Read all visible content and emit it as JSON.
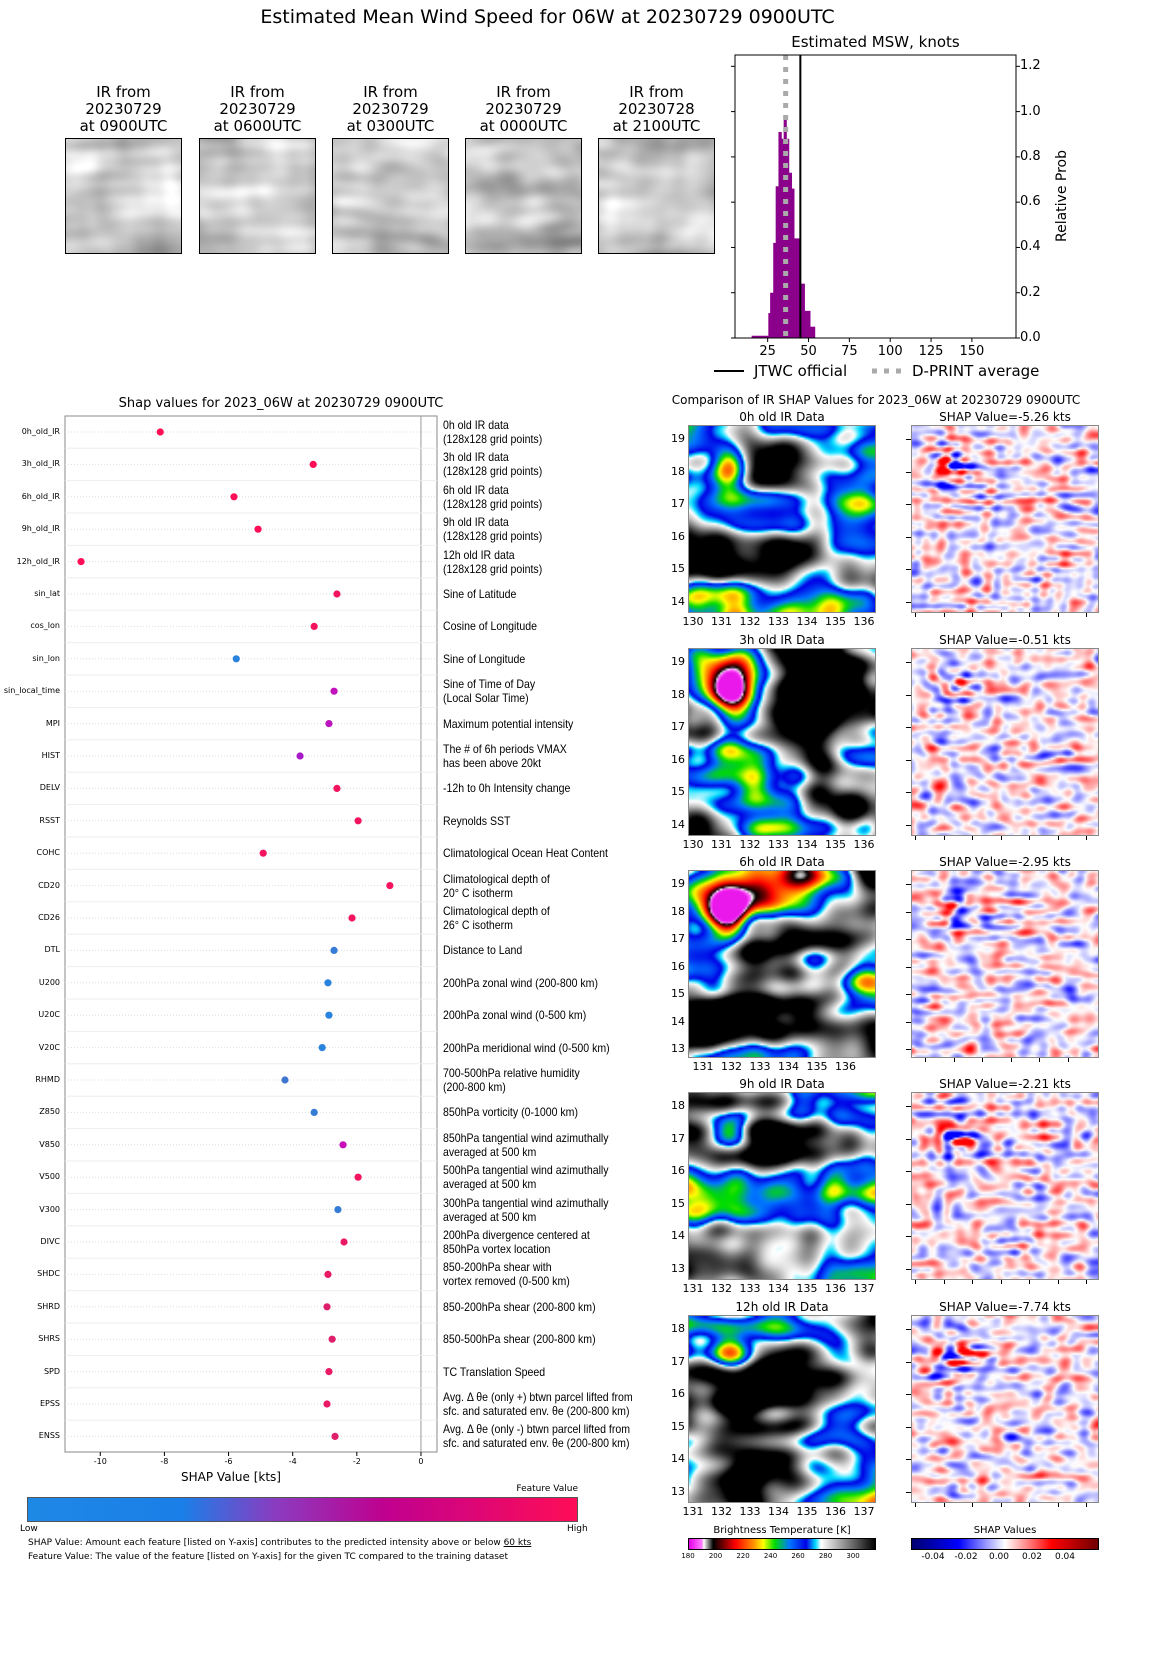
{
  "title": "Estimated Mean Wind Speed for 06W at 20230729 0900UTC",
  "ir_images": [
    {
      "title": "IR from\n20230729\nat 0900UTC"
    },
    {
      "title": "IR from\n20230729\nat 0600UTC"
    },
    {
      "title": "IR from\n20230729\nat 0300UTC"
    },
    {
      "title": "IR from\n20230729\nat 0000UTC"
    },
    {
      "title": "IR from\n20230728\nat 2100UTC"
    }
  ],
  "chart_data": [
    {
      "type": "bar",
      "title": "Estimated MSW, knots",
      "xlabel": "",
      "ylabel": "Relative Prob",
      "xlim": [
        5,
        177
      ],
      "ylim": [
        0,
        1.25
      ],
      "xticks": [
        "25",
        "50",
        "75",
        "100",
        "125",
        "150"
      ],
      "yticks": [
        "0.0",
        "0.2",
        "0.4",
        "0.6",
        "0.8",
        "1.0",
        "1.2"
      ],
      "bin_edges": [
        15.2,
        25.4,
        26.5,
        28.4,
        29.9,
        31.6,
        33.3,
        34.8,
        36.4,
        37.9,
        39.6,
        41.1,
        44.7,
        47.5,
        50.9,
        53.8
      ],
      "values": [
        0.01,
        0.11,
        0.2,
        0.42,
        0.67,
        0.91,
        0.88,
        0.98,
        0.88,
        0.73,
        0.66,
        0.44,
        0.24,
        0.12,
        0.05
      ],
      "bar_color": "#8b008b",
      "jtwc_official": 45,
      "dprint_average": 36,
      "legend": [
        {
          "label": "JTWC official",
          "style": "solid",
          "color": "#000000"
        },
        {
          "label": "D-PRINT average",
          "style": "dotted",
          "color": "#aaaaaa"
        }
      ],
      "legend_placement": "bottom"
    },
    {
      "type": "scatter",
      "title": "Shap values for 2023_06W at 20230729 0900UTC",
      "xlabel": "SHAP Value [kts]",
      "xlim": [
        -11.1,
        0.5
      ],
      "xticks": [
        -10,
        -8,
        -6,
        -4,
        -2,
        0
      ],
      "features": [
        {
          "code": "0h_old_IR",
          "desc": "0h old IR data\n(128x128 grid points)",
          "shap": -8.13,
          "fv": 1.0
        },
        {
          "code": "3h_old_IR",
          "desc": "3h old IR data\n(128x128 grid points)",
          "shap": -3.36,
          "fv": 1.0
        },
        {
          "code": "6h_old_IR",
          "desc": "6h old IR data\n(128x128 grid points)",
          "shap": -5.83,
          "fv": 1.0
        },
        {
          "code": "9h_old_IR",
          "desc": "9h old IR data\n(128x128 grid points)",
          "shap": -5.08,
          "fv": 1.0
        },
        {
          "code": "12h_old_IR",
          "desc": "12h old IR data\n(128x128 grid points)",
          "shap": -10.6,
          "fv": 1.0
        },
        {
          "code": "sin_lat",
          "desc": "Sine of Latitude",
          "shap": -2.62,
          "fv": 0.95
        },
        {
          "code": "cos_lon",
          "desc": "Cosine of Longitude",
          "shap": -3.33,
          "fv": 0.95
        },
        {
          "code": "sin_lon",
          "desc": "Sine of Longitude",
          "shap": -5.76,
          "fv": 0.05
        },
        {
          "code": "sin_local_time",
          "desc": "Sine of Time of Day\n(Local Solar Time)",
          "shap": -2.71,
          "fv": 0.55
        },
        {
          "code": "MPI",
          "desc": "Maximum potential intensity",
          "shap": -2.87,
          "fv": 0.5
        },
        {
          "code": "HIST",
          "desc": "The # of 6h periods VMAX\nhas been above 20kt",
          "shap": -3.77,
          "fv": 0.35
        },
        {
          "code": "DELV",
          "desc": "-12h to 0h Intensity change",
          "shap": -2.62,
          "fv": 0.95
        },
        {
          "code": "RSST",
          "desc": "Reynolds SST",
          "shap": -1.96,
          "fv": 0.95
        },
        {
          "code": "COHC",
          "desc": "Climatological Ocean Heat Content",
          "shap": -4.92,
          "fv": 0.95
        },
        {
          "code": "CD20",
          "desc": "Climatological depth of\n20° C isotherm",
          "shap": -0.97,
          "fv": 0.95
        },
        {
          "code": "CD26",
          "desc": "Climatological depth of\n26° C isotherm",
          "shap": -2.15,
          "fv": 0.95
        },
        {
          "code": "DTL",
          "desc": "Distance to Land",
          "shap": -2.71,
          "fv": 0.1
        },
        {
          "code": "U200",
          "desc": "200hPa zonal wind (200-800 km)",
          "shap": -2.9,
          "fv": 0.05
        },
        {
          "code": "U20C",
          "desc": "200hPa zonal wind (0-500 km)",
          "shap": -2.87,
          "fv": 0.05
        },
        {
          "code": "V20C",
          "desc": "200hPa meridional wind (0-500 km)",
          "shap": -3.08,
          "fv": 0.05
        },
        {
          "code": "RHMD",
          "desc": "700-500hPa relative humidity\n(200-800 km)",
          "shap": -4.24,
          "fv": 0.15
        },
        {
          "code": "Z850",
          "desc": "850hPa vorticity (0-1000 km)",
          "shap": -3.33,
          "fv": 0.1
        },
        {
          "code": "V850",
          "desc": "850hPa tangential wind azimuthally\naveraged at 500 km",
          "shap": -2.43,
          "fv": 0.6
        },
        {
          "code": "V500",
          "desc": "500hPa tangential wind azimuthally\naveraged at 500 km",
          "shap": -1.96,
          "fv": 0.95
        },
        {
          "code": "V300",
          "desc": "300hPa tangential wind azimuthally\naveraged at 500 km",
          "shap": -2.59,
          "fv": 0.1
        },
        {
          "code": "DIVC",
          "desc": "200hPa divergence centered at\n850hPa vortex location",
          "shap": -2.4,
          "fv": 0.9
        },
        {
          "code": "SHDC",
          "desc": "850-200hPa shear with\nvortex removed (0-500 km)",
          "shap": -2.9,
          "fv": 0.9
        },
        {
          "code": "SHRD",
          "desc": "850-200hPa shear (200-800 km)",
          "shap": -2.93,
          "fv": 0.85
        },
        {
          "code": "SHRS",
          "desc": "850-500hPa shear (200-800 km)",
          "shap": -2.77,
          "fv": 0.85
        },
        {
          "code": "SPD",
          "desc": "TC Translation Speed",
          "shap": -2.87,
          "fv": 0.9
        },
        {
          "code": "EPSS",
          "desc": "Avg. Δ θe (only +) btwn parcel lifted from\nsfc. and saturated env. θe (200-800 km)",
          "shap": -2.93,
          "fv": 0.9
        },
        {
          "code": "ENSS",
          "desc": "Avg. Δ θe (only -) btwn parcel lifted from\nsfc. and saturated env. θe (200-800 km)",
          "shap": -2.68,
          "fv": 0.85
        }
      ],
      "colors": {
        "low": "#1e88e5",
        "high": "#ff0d57"
      }
    }
  ],
  "feature_colorbar": {
    "title": "Feature Value",
    "low": "Low",
    "high": "High"
  },
  "notes": {
    "line1_prefix": "SHAP Value: Amount each feature [listed on Y-axis] contributes to the predicted intensity above or below ",
    "line1_link": "60 kts",
    "line2": "Feature Value: The value of the feature [listed on Y-axis] for the given TC compared to the training dataset"
  },
  "comparison": {
    "title": "Comparison of IR SHAP Values for 2023_06W at 20230729 0900UTC",
    "panels": [
      {
        "ir_title": "0h old IR Data",
        "shap_title": "SHAP Value=-5.26 kts",
        "yticks": [
          "19",
          "18",
          "17",
          "16",
          "15",
          "14"
        ],
        "xticks": [
          "130",
          "131",
          "132",
          "133",
          "134",
          "135",
          "136"
        ]
      },
      {
        "ir_title": "3h old IR Data",
        "shap_title": "SHAP Value=-0.51 kts",
        "yticks": [
          "19",
          "18",
          "17",
          "16",
          "15",
          "14"
        ],
        "xticks": [
          "130",
          "131",
          "132",
          "133",
          "134",
          "135",
          "136"
        ]
      },
      {
        "ir_title": "6h old IR Data",
        "shap_title": "SHAP Value=-2.95 kts",
        "yticks": [
          "19",
          "18",
          "17",
          "16",
          "15",
          "14",
          "13"
        ],
        "xticks": [
          "131",
          "132",
          "133",
          "134",
          "135",
          "136"
        ]
      },
      {
        "ir_title": "9h old IR Data",
        "shap_title": "SHAP Value=-2.21 kts",
        "yticks": [
          "18",
          "17",
          "16",
          "15",
          "14",
          "13"
        ],
        "xticks": [
          "131",
          "132",
          "133",
          "134",
          "135",
          "136",
          "137"
        ]
      },
      {
        "ir_title": "12h old IR Data",
        "shap_title": "SHAP Value=-7.74 kts",
        "yticks": [
          "18",
          "17",
          "16",
          "15",
          "14",
          "13"
        ],
        "xticks": [
          "131",
          "132",
          "133",
          "134",
          "135",
          "136",
          "137"
        ]
      }
    ],
    "bt_colorbar": {
      "title": "Brightness Temperature [K]",
      "ticks": [
        "180",
        "200",
        "220",
        "240",
        "260",
        "280",
        "300"
      ]
    },
    "shap_colorbar": {
      "title": "SHAP Values",
      "ticks": [
        "-0.04",
        "-0.02",
        "0.00",
        "0.02",
        "0.04"
      ]
    }
  }
}
